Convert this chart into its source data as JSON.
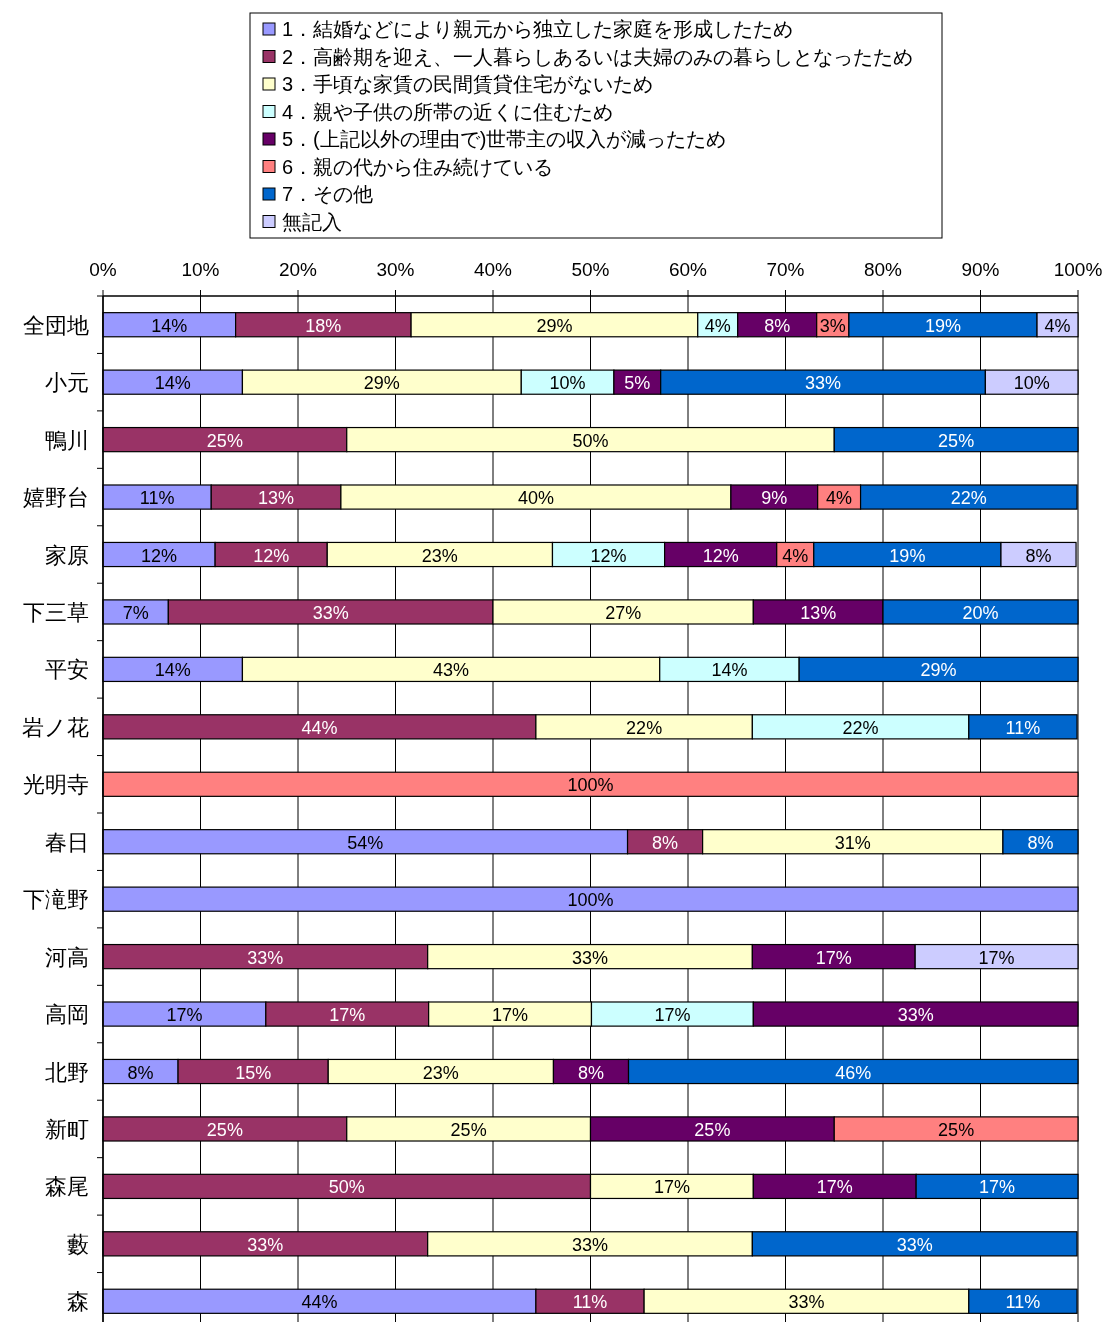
{
  "chart_data": {
    "type": "bar",
    "orientation": "horizontal",
    "stacked": true,
    "data_labels": false,
    "grid": "x",
    "legend": "top",
    "xlim": [
      0,
      100
    ],
    "xticks": [
      {
        "value": 0,
        "label": "0%"
      },
      {
        "value": 10,
        "label": "10%"
      },
      {
        "value": 20,
        "label": "20%"
      },
      {
        "value": 30,
        "label": "30%"
      },
      {
        "value": 40,
        "label": "40%"
      },
      {
        "value": 50,
        "label": "50%"
      },
      {
        "value": 60,
        "label": "60%"
      },
      {
        "value": 70,
        "label": "70%"
      },
      {
        "value": 80,
        "label": "80%"
      },
      {
        "value": 90,
        "label": "90%"
      },
      {
        "value": 100,
        "label": "100%"
      }
    ],
    "categories": [
      "全団地",
      "小元",
      "鴨川",
      "嬉野台",
      "家原",
      "下三草",
      "平安",
      "岩ノ花",
      "光明寺",
      "春日",
      "下滝野",
      "河高",
      "高岡",
      "北野",
      "新町",
      "森尾",
      "藪",
      "森"
    ],
    "series": [
      {
        "name": "1．結婚などにより親元から独立した家庭を形成したため",
        "color": "#9999ff",
        "values": [
          13.6,
          14.3,
          null,
          11.1,
          11.5,
          6.7,
          14.3,
          null,
          null,
          53.8,
          100,
          null,
          16.7,
          7.7,
          null,
          null,
          null,
          44.4
        ],
        "value_labels": [
          "14%",
          "14%",
          null,
          "11%",
          "12%",
          "7%",
          "14%",
          null,
          null,
          "54%",
          "100%",
          null,
          "17%",
          "8%",
          null,
          null,
          null,
          "44%"
        ]
      },
      {
        "name": "2．高齢期を迎え、一人暮らしあるいは夫婦のみの暮らしとなったため",
        "color": "#993366",
        "values": [
          18.0,
          null,
          25,
          13.3,
          11.5,
          33.3,
          null,
          44.4,
          null,
          7.7,
          null,
          33.3,
          16.7,
          15.4,
          25,
          50,
          33.3,
          11.1
        ],
        "value_labels": [
          "18%",
          null,
          "25%",
          "13%",
          "12%",
          "33%",
          null,
          "44%",
          null,
          "8%",
          null,
          "33%",
          "17%",
          "15%",
          "25%",
          "50%",
          "33%",
          "11%"
        ]
      },
      {
        "name": "3．手頃な家賃の民間賃貸住宅がないため",
        "color": "#ffffcc",
        "values": [
          29.4,
          28.6,
          50,
          40.0,
          23.1,
          26.7,
          42.8,
          22.2,
          null,
          30.8,
          null,
          33.3,
          16.7,
          23.1,
          25,
          16.7,
          33.3,
          33.3
        ],
        "value_labels": [
          "29%",
          "29%",
          "50%",
          "40%",
          "23%",
          "27%",
          "43%",
          "22%",
          null,
          "31%",
          null,
          "33%",
          "17%",
          "23%",
          "25%",
          "17%",
          "33%",
          "33%"
        ]
      },
      {
        "name": "4．親や子供の所帯の近くに住むため",
        "color": "#ccffff",
        "values": [
          4.1,
          9.5,
          null,
          null,
          11.5,
          null,
          14.3,
          22.2,
          null,
          null,
          null,
          null,
          16.6,
          null,
          null,
          null,
          null,
          null
        ],
        "value_labels": [
          "4%",
          "10%",
          null,
          null,
          "12%",
          null,
          "14%",
          "22%",
          null,
          null,
          null,
          null,
          "17%",
          null,
          null,
          null,
          null,
          null
        ]
      },
      {
        "name": "5．(上記以外の理由で)世帯主の収入が減ったため",
        "color": "#660066",
        "values": [
          8.1,
          4.8,
          null,
          8.9,
          11.5,
          13.3,
          null,
          null,
          null,
          null,
          null,
          16.7,
          33.3,
          7.7,
          25,
          16.7,
          null,
          null
        ],
        "value_labels": [
          "8%",
          "5%",
          null,
          "9%",
          "12%",
          "13%",
          null,
          null,
          null,
          null,
          null,
          "17%",
          "33%",
          "8%",
          "25%",
          "17%",
          null,
          null
        ]
      },
      {
        "name": "6．親の代から住み続けている",
        "color": "#ff8080",
        "values": [
          3.3,
          null,
          null,
          4.4,
          3.8,
          null,
          null,
          null,
          100,
          null,
          null,
          null,
          null,
          null,
          25,
          null,
          null,
          null
        ],
        "value_labels": [
          "3%",
          null,
          null,
          "4%",
          "4%",
          null,
          null,
          null,
          "100%",
          null,
          null,
          null,
          null,
          null,
          "25%",
          null,
          null,
          null
        ]
      },
      {
        "name": "7．その他",
        "color": "#0066cc",
        "values": [
          19.3,
          33.3,
          25,
          22.2,
          19.2,
          20.0,
          28.6,
          11.1,
          null,
          7.7,
          null,
          null,
          null,
          46.1,
          null,
          16.6,
          33.3,
          11.1
        ],
        "value_labels": [
          "19%",
          "33%",
          "25%",
          "22%",
          "19%",
          "20%",
          "29%",
          "11%",
          null,
          "8%",
          null,
          null,
          null,
          "46%",
          null,
          "17%",
          "33%",
          "11%"
        ]
      },
      {
        "name": "無記入",
        "color": "#ccccff",
        "values": [
          4.2,
          9.5,
          null,
          null,
          7.7,
          null,
          null,
          null,
          null,
          null,
          null,
          16.7,
          null,
          null,
          null,
          null,
          null,
          null
        ],
        "value_labels": [
          "4%",
          "10%",
          null,
          null,
          "8%",
          null,
          null,
          null,
          null,
          null,
          null,
          "17%",
          null,
          null,
          null,
          null,
          null,
          null
        ]
      }
    ]
  }
}
